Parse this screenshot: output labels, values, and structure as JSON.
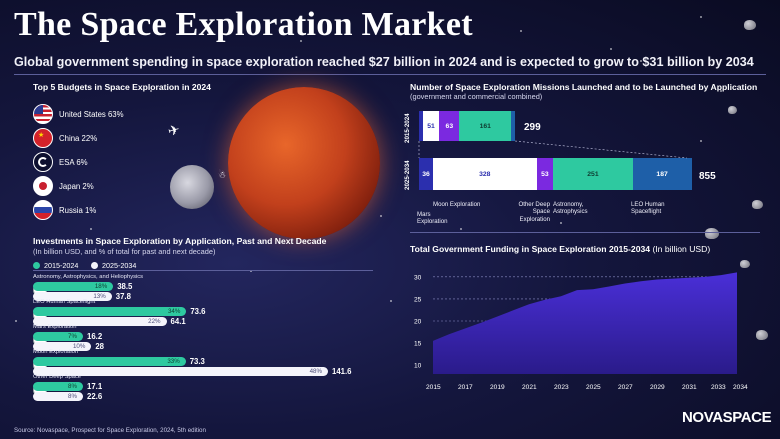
{
  "header": {
    "title": "The Space Exploration Market",
    "subtitle": "Global government spending in space exploration reached $27 billion in 2024 and is expected to grow to $31 billion by 2034"
  },
  "budgets": {
    "title": "Top 5 Budgets in Space Exploration in 2024",
    "items": [
      {
        "flag": "us-flag-icon",
        "label": "United States 63%"
      },
      {
        "flag": "china-flag-icon",
        "label": "China 22%"
      },
      {
        "flag": "esa-logo-icon",
        "label": "ESA 6%"
      },
      {
        "flag": "japan-flag-icon",
        "label": "Japan 2%"
      },
      {
        "flag": "russia-flag-icon",
        "label": "Russia 1%"
      }
    ]
  },
  "investments": {
    "title": "Investments in Space Exploration by Application, Past and Next Decade",
    "subtitle": "(In billion USD, and % of total for past and next decade)",
    "legend": [
      "2015-2024",
      "2025-2034"
    ],
    "colors": {
      "past": "#2ec9a0",
      "next": "#f4f4fb"
    }
  },
  "missions": {
    "title": "Number of Space Exploration Missions Launched and to be Launched by Application",
    "subtitle": "(government and commercial combined)",
    "period1": "2015-2024",
    "period2": "2025-2034",
    "total1": "299",
    "total2": "855",
    "labels": {
      "mars": "Mars Exploration",
      "moon": "Moon Exploration",
      "other": "Other Deep Space Exploration",
      "astro": "Astronomy, Astrophysics",
      "leo": "LEO Human Spaceflight"
    }
  },
  "funding": {
    "title": "Total Government Funding in Space Exploration 2015-2034",
    "unit": "(In billion USD)"
  },
  "chart_data": [
    {
      "type": "bar",
      "title": "Investments in Space Exploration by Application, Past and Next Decade",
      "categories": [
        "Astronomy, Astrophysics, and Heliophysics",
        "LEO Human Spaceflight",
        "Mars Exploration",
        "Moon Exploration",
        "Other Deep Space"
      ],
      "series": [
        {
          "name": "2015-2024",
          "values": [
            38.5,
            73.6,
            16.2,
            73.3,
            17.1
          ],
          "pct": [
            "18%",
            "34%",
            "7%",
            "33%",
            "8%"
          ]
        },
        {
          "name": "2025-2034",
          "values": [
            37.8,
            64.1,
            28,
            141.6,
            22.6
          ],
          "pct": [
            "13%",
            "22%",
            "10%",
            "48%",
            "8%"
          ]
        }
      ]
    },
    {
      "type": "bar",
      "title": "Number of Space Exploration Missions Launched and to be Launched by Application",
      "categories": [
        "Mars Exploration",
        "Moon Exploration",
        "Other Deep Space Exploration",
        "Astronomy, Astrophysics",
        "LEO Human Spaceflight"
      ],
      "series": [
        {
          "name": "2015-2024",
          "values": [
            12,
            51,
            63,
            161,
            12
          ]
        },
        {
          "name": "2025-2034",
          "values": [
            36,
            328,
            53,
            251,
            187
          ]
        }
      ],
      "totals": [
        299,
        855
      ]
    },
    {
      "type": "area",
      "title": "Total Government Funding in Space Exploration 2015-2034",
      "x_ticks": [
        "2015",
        "2017",
        "2019",
        "2021",
        "2023",
        "2025",
        "2027",
        "2029",
        "2031",
        "2033",
        "2034"
      ],
      "y_ticks": [
        "10",
        "15",
        "20",
        "25",
        "30"
      ],
      "x": [
        2015,
        2016,
        2017,
        2018,
        2019,
        2020,
        2021,
        2022,
        2023,
        2024,
        2025,
        2026,
        2027,
        2028,
        2029,
        2030,
        2031,
        2032,
        2033,
        2034
      ],
      "values": [
        15.5,
        17.0,
        18.3,
        19.6,
        21.0,
        22.4,
        23.8,
        24.8,
        25.6,
        27.0,
        27.2,
        27.8,
        28.5,
        29.0,
        29.4,
        29.6,
        29.8,
        30.0,
        30.4,
        31.0
      ],
      "ylim": [
        8,
        32
      ],
      "color": "#4a2fd8"
    }
  ],
  "footer": {
    "source": "Source: Novaspace, Prospect for Space Exploration, 2024, 5th edition",
    "brand": "NOVASPACE"
  }
}
